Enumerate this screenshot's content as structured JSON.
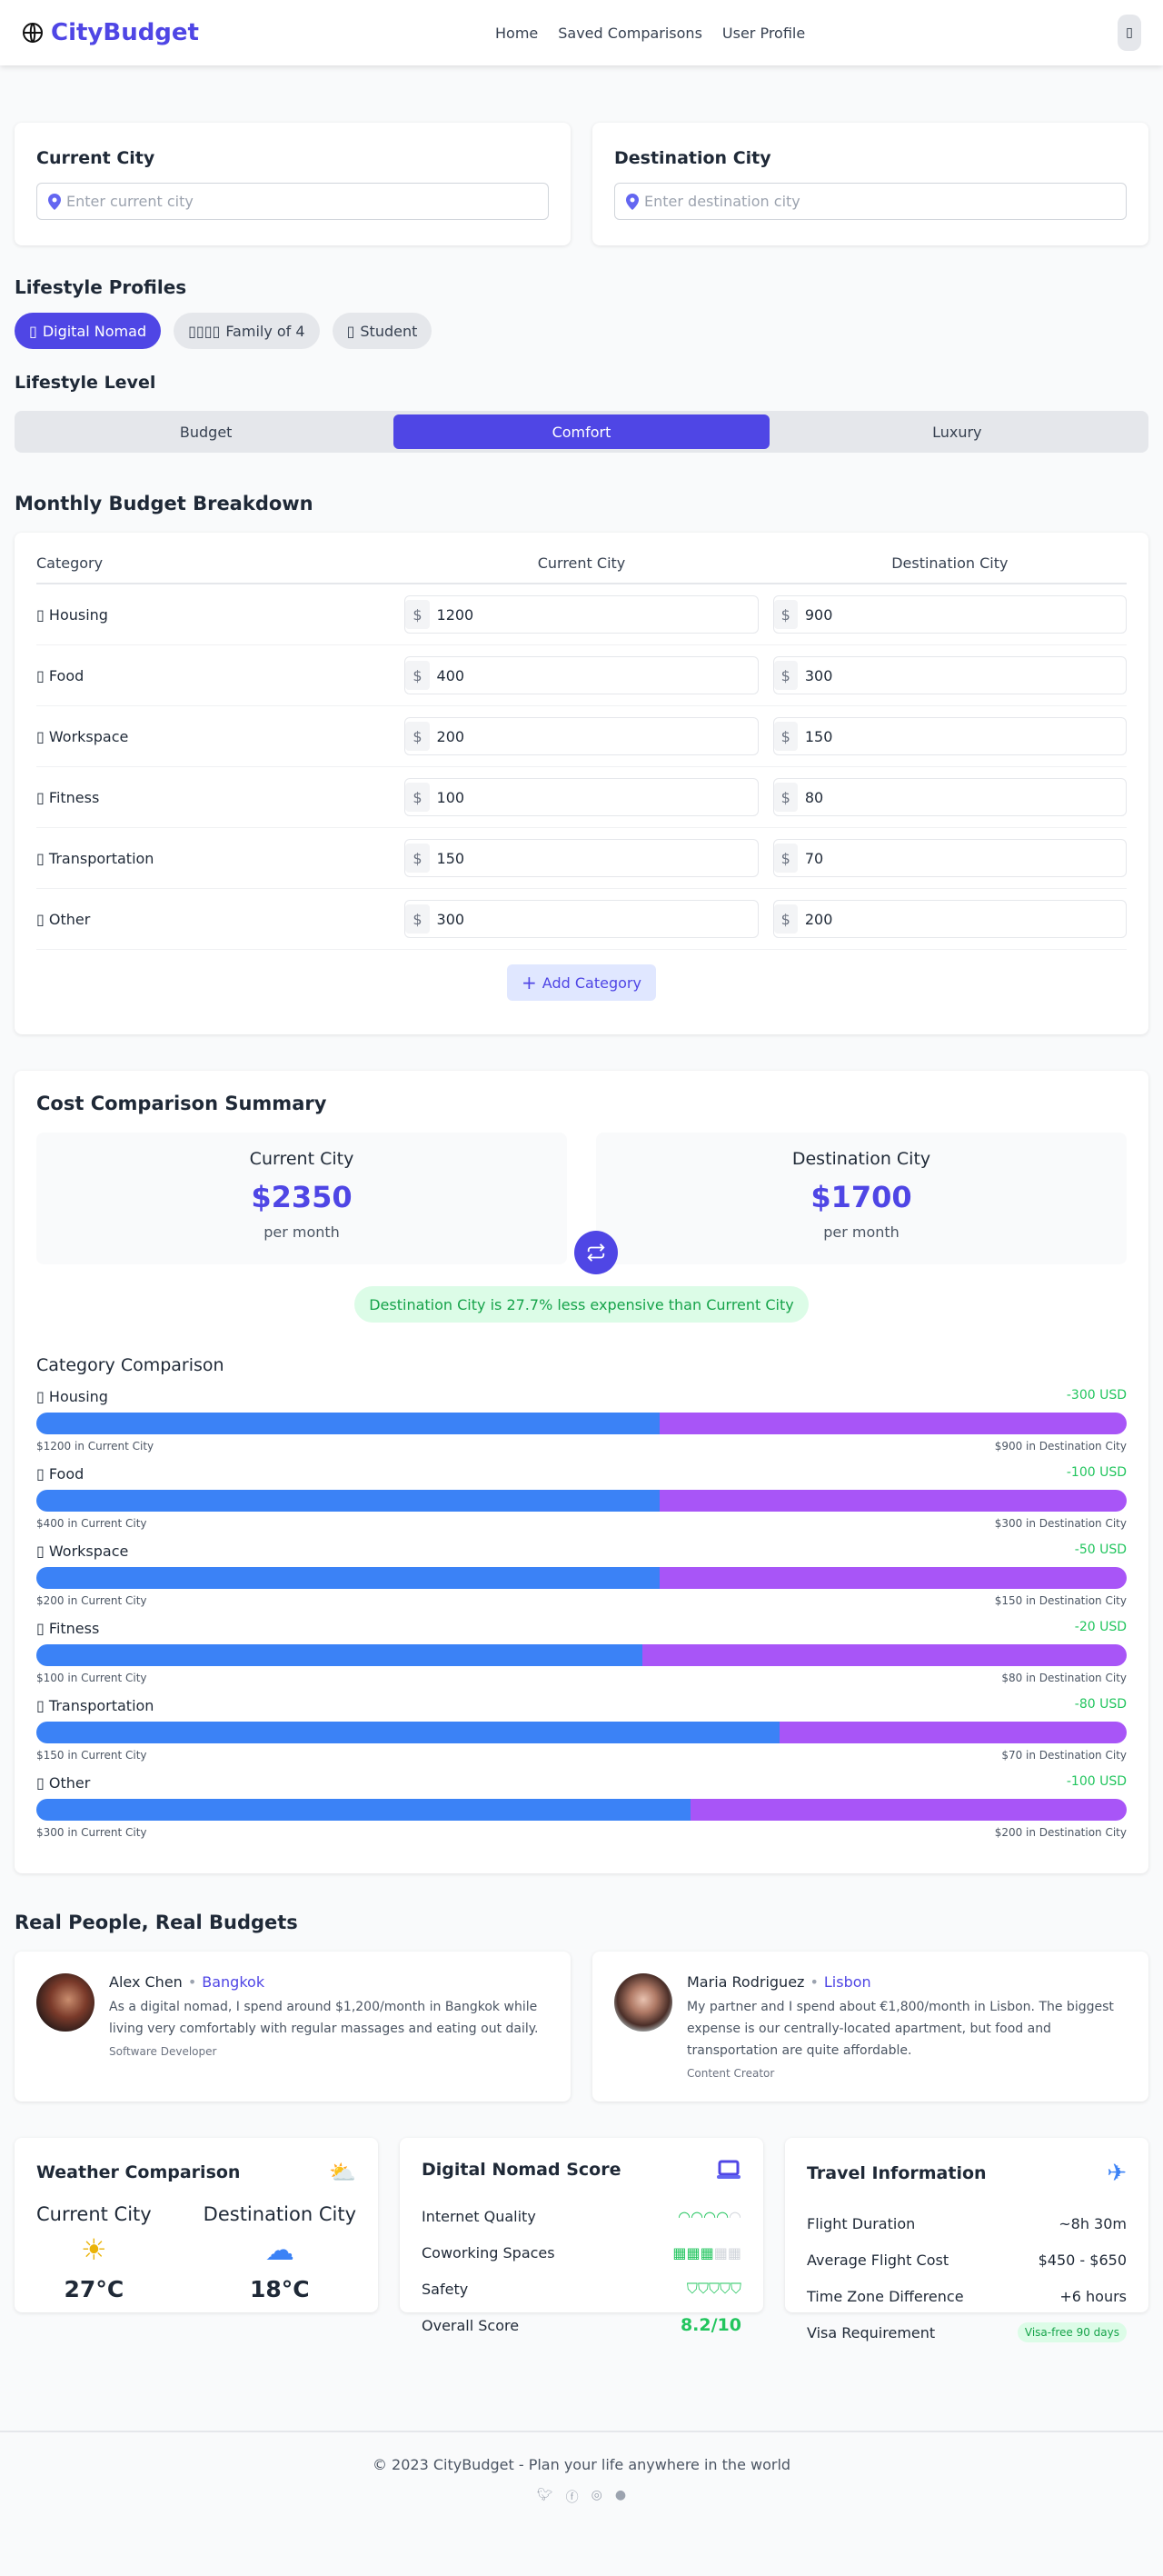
{
  "nav": {
    "brand": "CityBudget",
    "links": [
      "Home",
      "Saved Comparisons",
      "User Profile"
    ],
    "menu_glyph": "▯",
    "brand_color": "#4f46e5"
  },
  "cities": {
    "current_title": "Current City",
    "current_placeholder": "Enter current city",
    "dest_title": "Destination City",
    "dest_placeholder": "Enter destination city"
  },
  "profiles": {
    "title": "Lifestyle Profiles",
    "items": [
      {
        "icon": "▯",
        "label": "Digital Nomad",
        "active": true
      },
      {
        "icon": "▯▯▯▯",
        "label": "Family of 4"
      },
      {
        "icon": "▯",
        "label": "Student"
      }
    ]
  },
  "level": {
    "title": "Lifestyle Level",
    "options": [
      "Budget",
      "Comfort",
      "Luxury"
    ],
    "selected": "Comfort"
  },
  "budget": {
    "title": "Monthly Budget Breakdown",
    "headers": [
      "Category",
      "Current City",
      "Destination City"
    ],
    "currency": "$",
    "rows": [
      {
        "icon": "▯",
        "category": "Housing",
        "current": "1200",
        "dest": "900"
      },
      {
        "icon": "▯",
        "category": "Food",
        "current": "400",
        "dest": "300"
      },
      {
        "icon": "▯",
        "category": "Workspace",
        "current": "200",
        "dest": "150"
      },
      {
        "icon": "▯",
        "category": "Fitness",
        "current": "100",
        "dest": "80"
      },
      {
        "icon": "▯",
        "category": "Transportation",
        "current": "150",
        "dest": "70"
      },
      {
        "icon": "▯",
        "category": "Other",
        "current": "300",
        "dest": "200"
      }
    ],
    "add_label": "Add Category"
  },
  "summary": {
    "title": "Cost Comparison Summary",
    "current_label": "Current City",
    "current_total": "$2350",
    "dest_label": "Destination City",
    "dest_total": "$1700",
    "per": "per month",
    "badge": "Destination City is 27.7% less expensive than Current City",
    "category_title": "Category Comparison",
    "items": [
      {
        "icon": "▯",
        "label": "Housing",
        "diff": "-300 USD",
        "current": 1200,
        "dest": 900,
        "cur_cap": "$1200 in Current City",
        "dest_cap": "$900 in Destination City"
      },
      {
        "icon": "▯",
        "label": "Food",
        "diff": "-100 USD",
        "current": 400,
        "dest": 300,
        "cur_cap": "$400 in Current City",
        "dest_cap": "$300 in Destination City"
      },
      {
        "icon": "▯",
        "label": "Workspace",
        "diff": "-50 USD",
        "current": 200,
        "dest": 150,
        "cur_cap": "$200 in Current City",
        "dest_cap": "$150 in Destination City"
      },
      {
        "icon": "▯",
        "label": "Fitness",
        "diff": "-20 USD",
        "current": 100,
        "dest": 80,
        "cur_cap": "$100 in Current City",
        "dest_cap": "$80 in Destination City"
      },
      {
        "icon": "▯",
        "label": "Transportation",
        "diff": "-80 USD",
        "current": 150,
        "dest": 70,
        "cur_cap": "$150 in Current City",
        "dest_cap": "$70 in Destination City"
      },
      {
        "icon": "▯",
        "label": "Other",
        "diff": "-100 USD",
        "current": 300,
        "dest": 200,
        "cur_cap": "$300 in Current City",
        "dest_cap": "$200 in Destination City"
      }
    ],
    "colors": {
      "current": "#3b82f6",
      "destination": "#a855f7"
    }
  },
  "testimonials": {
    "title": "Real People, Real Budgets",
    "items": [
      {
        "name": "Alex Chen",
        "city": "Bangkok",
        "quote": "As a digital nomad, I spend around $1,200/month in Bangkok while living very comfortably with regular massages and eating out daily.",
        "role": "Software Developer"
      },
      {
        "name": "Maria Rodriguez",
        "city": "Lisbon",
        "quote": "My partner and I spend about €1,800/month in Lisbon. The biggest expense is our centrally-located apartment, but food and transportation are quite affordable.",
        "role": "Content Creator"
      }
    ]
  },
  "weather": {
    "title": "Weather Comparison",
    "current_label": "Current City",
    "current_temp": "27°C",
    "current_icon": "sun",
    "dest_label": "Destination City",
    "dest_temp": "18°C",
    "dest_icon": "rain-cloud"
  },
  "nomad": {
    "title": "Digital Nomad Score",
    "internet_label": "Internet Quality",
    "internet_rating": 4,
    "cowork_label": "Coworking Spaces",
    "cowork_rating": 3,
    "safety_label": "Safety",
    "safety_rating": 5,
    "overall_label": "Overall Score",
    "overall": "8.2/10"
  },
  "travel": {
    "title": "Travel Information",
    "rows": [
      {
        "label": "Flight Duration",
        "value": "~8h 30m"
      },
      {
        "label": "Average Flight Cost",
        "value": "$450 - $650"
      },
      {
        "label": "Time Zone Difference",
        "value": "+6 hours"
      }
    ],
    "visa_label": "Visa Requirement",
    "visa_value": "Visa-free 90 days"
  },
  "footer": {
    "text": "© 2023 CityBudget - Plan your life anywhere in the world",
    "socials": [
      "twitter",
      "facebook",
      "instagram",
      "github"
    ]
  }
}
